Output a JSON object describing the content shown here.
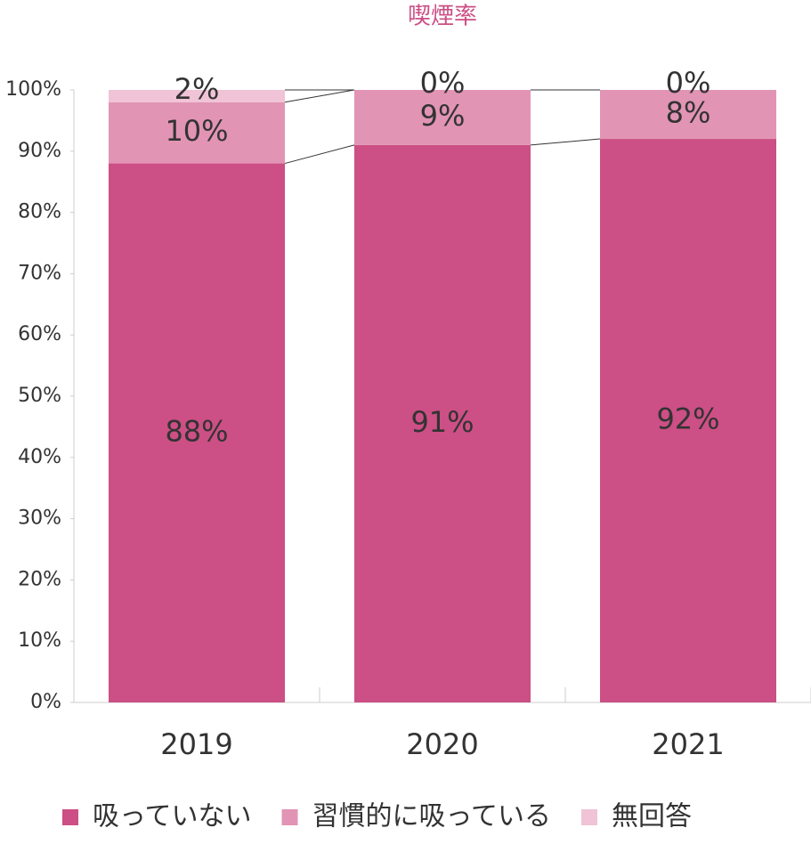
{
  "chart_data": {
    "type": "stacked_bar",
    "title": "喫煙率",
    "categories": [
      "2019",
      "2020",
      "2021"
    ],
    "series": [
      {
        "name": "吸っていない",
        "color": "#cc4f85",
        "values": [
          88,
          91,
          92
        ],
        "value_labels": [
          "88%",
          "91%",
          "92%"
        ]
      },
      {
        "name": "習慣的に吸っている",
        "color": "#e294b5",
        "values": [
          10,
          9,
          8
        ],
        "value_labels": [
          "10%",
          "9%",
          "8%"
        ]
      },
      {
        "name": "無回答",
        "color": "#f0c3d6",
        "values": [
          2,
          0,
          0
        ],
        "value_labels": [
          "2%",
          "0%",
          "0%"
        ]
      }
    ],
    "ylim": [
      0,
      100
    ],
    "yticks": [
      {
        "value": 0,
        "label": "0%"
      },
      {
        "value": 10,
        "label": "10%"
      },
      {
        "value": 20,
        "label": "20%"
      },
      {
        "value": 30,
        "label": "30%"
      },
      {
        "value": 40,
        "label": "40%"
      },
      {
        "value": 50,
        "label": "50%"
      },
      {
        "value": 60,
        "label": "60%"
      },
      {
        "value": 70,
        "label": "70%"
      },
      {
        "value": 80,
        "label": "80%"
      },
      {
        "value": 90,
        "label": "90%"
      },
      {
        "value": 100,
        "label": "100%"
      }
    ],
    "legend": "bottom"
  }
}
